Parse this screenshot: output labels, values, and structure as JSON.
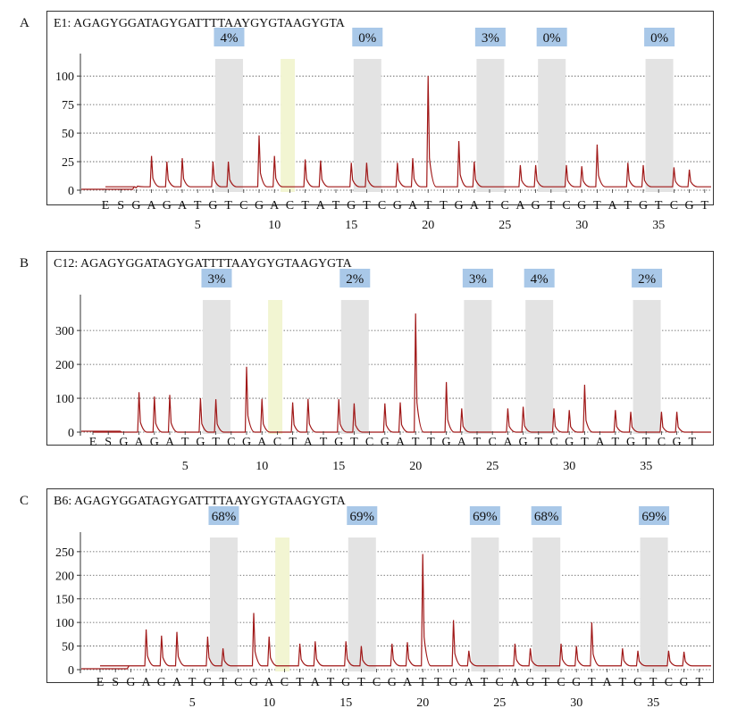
{
  "figure": {
    "sequence_labels": [
      "E",
      "S",
      "G",
      "A",
      "G",
      "A",
      "T",
      "G",
      "T",
      "C",
      "G",
      "A",
      "C",
      "T",
      "A",
      "T",
      "G",
      "T",
      "C",
      "G",
      "A",
      "T",
      "T",
      "G",
      "A",
      "T",
      "C",
      "A",
      "G",
      "T",
      "C",
      "G",
      "T",
      "A",
      "T",
      "G",
      "T",
      "C",
      "G",
      "T"
    ],
    "position_ticks": [
      "5",
      "10",
      "15",
      "20",
      "25",
      "30",
      "35"
    ]
  },
  "chart_data": [
    {
      "panel": "A",
      "type": "line",
      "title": "E1: AGAGYGGATAGYGATTTTAAYGYGTAAGYGTA",
      "ylim": [
        0,
        115
      ],
      "yticks": [
        0,
        25,
        50,
        75,
        100
      ],
      "grid": true,
      "baseline": 3,
      "cpg_percent": [
        "4%",
        "0%",
        "3%",
        "0%",
        "0%"
      ],
      "peak_heights": [
        0,
        0,
        2,
        30,
        25,
        28,
        0,
        25,
        25,
        0,
        48,
        30,
        0,
        27,
        26,
        0,
        24,
        24,
        0,
        24,
        28,
        100,
        0,
        43,
        25,
        0,
        0,
        22,
        22,
        0,
        22,
        21,
        40,
        0,
        24,
        22,
        0,
        20,
        18,
        0
      ]
    },
    {
      "panel": "B",
      "type": "line",
      "title": "C12: AGAGYGGATAGYGATTTTAAYGYGTAAGYGTA",
      "ylim": [
        0,
        390
      ],
      "yticks": [
        0,
        100,
        200,
        300
      ],
      "grid": true,
      "baseline": 0,
      "cpg_percent": [
        "3%",
        "2%",
        "3%",
        "4%",
        "2%"
      ],
      "peak_heights": [
        0,
        0,
        0,
        118,
        105,
        110,
        0,
        100,
        97,
        0,
        193,
        98,
        0,
        88,
        98,
        0,
        97,
        85,
        0,
        85,
        88,
        350,
        0,
        148,
        70,
        0,
        0,
        70,
        75,
        0,
        70,
        65,
        140,
        0,
        65,
        60,
        0,
        60,
        60,
        0
      ]
    },
    {
      "panel": "C",
      "type": "line",
      "title": "B6: AGAGYGGATAGYGATTTTAAYGYGTAAGYGTA",
      "ylim": [
        0,
        280
      ],
      "yticks": [
        0,
        50,
        100,
        150,
        200,
        250
      ],
      "grid": true,
      "baseline": 8,
      "cpg_percent": [
        "68%",
        "69%",
        "69%",
        "68%",
        "69%"
      ],
      "peak_heights": [
        0,
        0,
        0,
        85,
        72,
        80,
        0,
        70,
        45,
        0,
        120,
        70,
        0,
        55,
        60,
        0,
        60,
        50,
        0,
        55,
        58,
        245,
        0,
        105,
        40,
        0,
        0,
        55,
        45,
        0,
        55,
        50,
        100,
        0,
        45,
        40,
        0,
        40,
        38,
        0
      ]
    }
  ]
}
